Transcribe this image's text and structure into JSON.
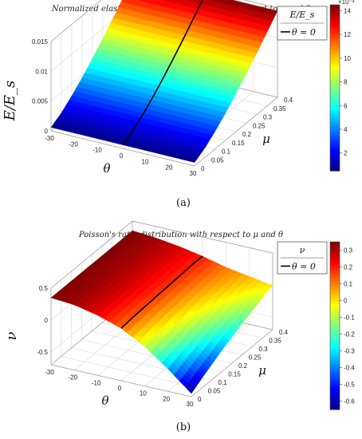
{
  "panels": [
    {
      "caption": "(a)",
      "chart_data": {
        "type": "surface3d",
        "title": "Normalized elastic modulus distribution with respect to μ and θ",
        "xlabel": "θ",
        "ylabel": "μ",
        "zlabel": "E/E_s",
        "x_ticks": [
          "-30",
          "-20",
          "-10",
          "0",
          "10",
          "20",
          "30"
        ],
        "y_ticks": [
          "0",
          "0.05",
          "0.1",
          "0.15",
          "0.2",
          "0.25",
          "0.3",
          "0.35",
          "0.4"
        ],
        "z_ticks": [
          "0",
          "0.005",
          "0.01",
          "0.015"
        ],
        "xlim": [
          -30,
          30
        ],
        "ylim": [
          0,
          0.4
        ],
        "zlim": [
          0,
          0.015
        ],
        "colorbar": {
          "label": "E/E_s",
          "exponent": "×10⁻³",
          "ticks": [
            "14",
            "12",
            "10",
            "8",
            "6",
            "4",
            "2"
          ],
          "range": [
            0.0005,
            0.0145
          ]
        },
        "legend": {
          "entry": "θ = 0",
          "placement": "top-right"
        },
        "surface_grid": {
          "theta": [
            -30,
            -20,
            -10,
            0,
            10,
            20,
            30
          ],
          "mu": [
            0,
            0.05,
            0.1,
            0.15,
            0.2,
            0.25,
            0.3,
            0.35,
            0.4
          ],
          "values_by_mu": [
            [
              0.0006,
              0.0006,
              0.0006,
              0.0006,
              0.0006,
              0.0006,
              0.0006
            ],
            [
              0.0016,
              0.0016,
              0.0016,
              0.0016,
              0.0016,
              0.0016,
              0.0016
            ],
            [
              0.003,
              0.003,
              0.003,
              0.003,
              0.003,
              0.003,
              0.003
            ],
            [
              0.0046,
              0.0046,
              0.0046,
              0.0046,
              0.0046,
              0.0046,
              0.0046
            ],
            [
              0.0064,
              0.0064,
              0.0064,
              0.0064,
              0.0064,
              0.0064,
              0.0064
            ],
            [
              0.0083,
              0.0083,
              0.0083,
              0.0083,
              0.0083,
              0.0083,
              0.0083
            ],
            [
              0.0103,
              0.0103,
              0.0103,
              0.0103,
              0.0103,
              0.0103,
              0.0103
            ],
            [
              0.0124,
              0.0124,
              0.0124,
              0.0124,
              0.0124,
              0.0124,
              0.0124
            ],
            [
              0.0145,
              0.0145,
              0.0145,
              0.0145,
              0.0145,
              0.0145,
              0.0145
            ]
          ]
        },
        "line_series": {
          "name": "θ = 0",
          "mu": [
            0,
            0.05,
            0.1,
            0.15,
            0.2,
            0.25,
            0.3,
            0.35,
            0.4
          ],
          "values": [
            0.0006,
            0.0016,
            0.003,
            0.0046,
            0.0064,
            0.0083,
            0.0103,
            0.0124,
            0.0145
          ]
        }
      }
    },
    {
      "caption": "(b)",
      "chart_data": {
        "type": "surface3d",
        "title": "Poisson's ratio distribution with respect to μ and θ",
        "xlabel": "θ",
        "ylabel": "μ",
        "zlabel": "ν",
        "x_ticks": [
          "-30",
          "-20",
          "-10",
          "0",
          "10",
          "20",
          "30"
        ],
        "y_ticks": [
          "0",
          "0.05",
          "0.1",
          "0.15",
          "0.2",
          "0.25",
          "0.3",
          "0.35",
          "0.4"
        ],
        "z_ticks": [
          "-0.5",
          "0",
          "0.5"
        ],
        "xlim": [
          -30,
          30
        ],
        "ylim": [
          0,
          0.4
        ],
        "zlim": [
          -0.7,
          0.5
        ],
        "colorbar": {
          "label": "ν",
          "exponent": "",
          "ticks": [
            "0.3",
            "0.2",
            "0.1",
            "0",
            "-0.1",
            "-0.2",
            "-0.3",
            "-0.4",
            "-0.5",
            "-0.6"
          ],
          "range": [
            -0.65,
            0.35
          ]
        },
        "legend": {
          "entry": "θ = 0",
          "placement": "top-right"
        },
        "surface_grid": {
          "theta": [
            -30,
            -20,
            -10,
            0,
            10,
            20,
            30
          ],
          "mu": [
            0,
            0.05,
            0.1,
            0.15,
            0.2,
            0.25,
            0.3,
            0.35,
            0.4
          ],
          "values_by_mu": [
            [
              0.35,
              0.32,
              0.24,
              0.12,
              -0.08,
              -0.35,
              -0.65
            ],
            [
              0.35,
              0.32,
              0.25,
              0.14,
              -0.04,
              -0.28,
              -0.55
            ],
            [
              0.35,
              0.32,
              0.25,
              0.15,
              -0.01,
              -0.22,
              -0.46
            ],
            [
              0.35,
              0.32,
              0.26,
              0.16,
              0.02,
              -0.16,
              -0.37
            ],
            [
              0.35,
              0.32,
              0.26,
              0.17,
              0.04,
              -0.11,
              -0.29
            ],
            [
              0.35,
              0.32,
              0.26,
              0.18,
              0.06,
              -0.06,
              -0.21
            ],
            [
              0.35,
              0.32,
              0.26,
              0.19,
              0.08,
              -0.02,
              -0.14
            ],
            [
              0.35,
              0.32,
              0.27,
              0.2,
              0.1,
              0.02,
              -0.07
            ],
            [
              0.35,
              0.32,
              0.27,
              0.2,
              0.11,
              0.05,
              -0.01
            ]
          ]
        },
        "line_series": {
          "name": "θ = 0",
          "mu": [
            0,
            0.05,
            0.1,
            0.15,
            0.2,
            0.25,
            0.3,
            0.35,
            0.4
          ],
          "values": [
            0.12,
            0.14,
            0.15,
            0.16,
            0.17,
            0.18,
            0.19,
            0.2,
            0.2
          ]
        }
      }
    }
  ]
}
